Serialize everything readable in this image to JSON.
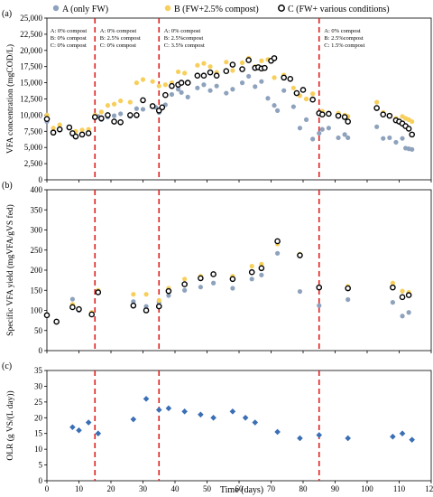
{
  "legend": [
    {
      "name": "A (only FW)",
      "marker": "filled",
      "color": "#8ea2bd"
    },
    {
      "name": "B (FW+2.5% compost)",
      "marker": "filled",
      "color": "#f7cf5a"
    },
    {
      "name": "C (FW+ various conditions)",
      "marker": "open",
      "color": "#000000"
    }
  ],
  "dividers_x": [
    15,
    35,
    85
  ],
  "xlim": [
    0,
    120
  ],
  "xticks": [
    0,
    10,
    20,
    30,
    40,
    50,
    60,
    70,
    80,
    90,
    100,
    110,
    120
  ],
  "xlabel": "Time (days)",
  "chart_data": [
    {
      "panel": "(a)",
      "type": "scatter",
      "ylabel": "VFA concentration (mgCOD/L)",
      "ylim": [
        0,
        25000
      ],
      "yticks": [
        "0",
        "2,500",
        "5,000",
        "7,500",
        "10,000",
        "12,500",
        "15,000",
        "17,500",
        "20,000",
        "22,500",
        "25,000"
      ],
      "annotations": [
        {
          "x": 0.5,
          "lines": [
            "A: 0% compost",
            "B: 0% compost",
            "C: 0% compost"
          ]
        },
        {
          "x": 16,
          "lines": [
            "A: 0% compost",
            "B: 2.5% compost",
            "C: 0% compost"
          ]
        },
        {
          "x": 36,
          "lines": [
            "A: 0% compost",
            "B: 2.5%compost",
            "C: 3.5% compost"
          ]
        },
        {
          "x": 86,
          "lines": [
            "A: 0% compost",
            "B: 2.5%compost",
            "C: 1.5% compost"
          ]
        }
      ],
      "series": [
        {
          "name": "A (only FW)",
          "points": [
            [
              0,
              9000
            ],
            [
              2,
              7500
            ],
            [
              4,
              7700
            ],
            [
              7,
              8000
            ],
            [
              8,
              7000
            ],
            [
              9,
              6800
            ],
            [
              11,
              7200
            ],
            [
              13,
              7300
            ],
            [
              16,
              9800
            ],
            [
              17,
              9300
            ],
            [
              19,
              9700
            ],
            [
              21,
              9900
            ],
            [
              23,
              10200
            ],
            [
              26,
              9800
            ],
            [
              28,
              11000
            ],
            [
              30,
              10900
            ],
            [
              34,
              11200
            ],
            [
              35,
              10400
            ],
            [
              37,
              11600
            ],
            [
              39,
              13200
            ],
            [
              41,
              14000
            ],
            [
              42,
              13500
            ],
            [
              44,
              12800
            ],
            [
              47,
              14200
            ],
            [
              49,
              14700
            ],
            [
              51,
              13800
            ],
            [
              53,
              14500
            ],
            [
              56,
              13400
            ],
            [
              58,
              14000
            ],
            [
              61,
              15000
            ],
            [
              63,
              16000
            ],
            [
              65,
              14400
            ],
            [
              67,
              15200
            ],
            [
              69,
              12600
            ],
            [
              71,
              11500
            ],
            [
              72,
              10700
            ],
            [
              74,
              13800
            ],
            [
              77,
              11300
            ],
            [
              79,
              8000
            ],
            [
              81,
              9300
            ],
            [
              83,
              6300
            ],
            [
              85,
              7200
            ],
            [
              86,
              7800
            ],
            [
              88,
              8000
            ],
            [
              91,
              6500
            ],
            [
              93,
              7000
            ],
            [
              94,
              6500
            ],
            [
              103,
              8200
            ],
            [
              105,
              6400
            ],
            [
              107,
              6500
            ],
            [
              109,
              5800
            ],
            [
              111,
              6400
            ],
            [
              112,
              4900
            ],
            [
              113,
              4800
            ],
            [
              114,
              4700
            ]
          ]
        },
        {
          "name": "B (FW+2.5% compost)",
          "points": [
            [
              0,
              10000
            ],
            [
              2,
              8000
            ],
            [
              4,
              8500
            ],
            [
              7,
              8200
            ],
            [
              9,
              7500
            ],
            [
              11,
              7700
            ],
            [
              13,
              7800
            ],
            [
              15,
              10000
            ],
            [
              17,
              10500
            ],
            [
              19,
              11500
            ],
            [
              21,
              11700
            ],
            [
              23,
              12200
            ],
            [
              26,
              12000
            ],
            [
              28,
              15000
            ],
            [
              30,
              15500
            ],
            [
              33,
              15200
            ],
            [
              35,
              14500
            ],
            [
              37,
              14700
            ],
            [
              39,
              15000
            ],
            [
              41,
              16700
            ],
            [
              43,
              16500
            ],
            [
              47,
              17700
            ],
            [
              49,
              18000
            ],
            [
              51,
              17500
            ],
            [
              53,
              16600
            ],
            [
              56,
              18200
            ],
            [
              58,
              16900
            ],
            [
              61,
              18100
            ],
            [
              63,
              18800
            ],
            [
              65,
              17500
            ],
            [
              67,
              18400
            ],
            [
              69,
              18600
            ],
            [
              71,
              15800
            ],
            [
              74,
              16200
            ],
            [
              77,
              14200
            ],
            [
              79,
              13000
            ],
            [
              81,
              12500
            ],
            [
              83,
              13300
            ],
            [
              86,
              10600
            ],
            [
              88,
              10300
            ],
            [
              91,
              10300
            ],
            [
              93,
              10000
            ],
            [
              94,
              9800
            ],
            [
              103,
              12000
            ],
            [
              105,
              10400
            ],
            [
              107,
              10000
            ],
            [
              109,
              9500
            ],
            [
              111,
              9800
            ],
            [
              112,
              9500
            ],
            [
              113,
              9300
            ],
            [
              114,
              9000
            ]
          ]
        },
        {
          "name": "C (FW+ various conditions)",
          "points": [
            [
              0,
              9400
            ],
            [
              2,
              7300
            ],
            [
              4,
              7800
            ],
            [
              7,
              8100
            ],
            [
              8,
              7200
            ],
            [
              9,
              6700
            ],
            [
              11,
              7000
            ],
            [
              13,
              7200
            ],
            [
              15,
              9700
            ],
            [
              17,
              9500
            ],
            [
              19,
              10000
            ],
            [
              21,
              9000
            ],
            [
              23,
              8900
            ],
            [
              26,
              10000
            ],
            [
              28,
              10000
            ],
            [
              30,
              12300
            ],
            [
              33,
              11400
            ],
            [
              35,
              10700
            ],
            [
              36,
              11200
            ],
            [
              37,
              13100
            ],
            [
              39,
              14500
            ],
            [
              41,
              14700
            ],
            [
              42,
              15000
            ],
            [
              44,
              15000
            ],
            [
              47,
              16100
            ],
            [
              49,
              16100
            ],
            [
              51,
              16600
            ],
            [
              53,
              16100
            ],
            [
              56,
              16800
            ],
            [
              58,
              17800
            ],
            [
              61,
              17100
            ],
            [
              63,
              18500
            ],
            [
              65,
              17300
            ],
            [
              66,
              17400
            ],
            [
              67,
              17200
            ],
            [
              68,
              17300
            ],
            [
              70,
              18400
            ],
            [
              71,
              18800
            ],
            [
              74,
              15800
            ],
            [
              76,
              15600
            ],
            [
              78,
              13400
            ],
            [
              80,
              13900
            ],
            [
              83,
              12400
            ],
            [
              85,
              10300
            ],
            [
              86,
              10100
            ],
            [
              88,
              10200
            ],
            [
              91,
              9900
            ],
            [
              93,
              9700
            ],
            [
              94,
              9000
            ],
            [
              103,
              11100
            ],
            [
              105,
              10100
            ],
            [
              107,
              9900
            ],
            [
              109,
              9200
            ],
            [
              110,
              9000
            ],
            [
              111,
              8700
            ],
            [
              112,
              8300
            ],
            [
              113,
              7900
            ],
            [
              114,
              7000
            ]
          ]
        }
      ]
    },
    {
      "panel": "(b)",
      "type": "scatter",
      "ylabel": "Specific VFA yield (mgVFA/gVS fed)",
      "ylim": [
        0,
        400
      ],
      "yticks": [
        "0",
        "50",
        "100",
        "150",
        "200",
        "250",
        "300",
        "350",
        "400"
      ],
      "series": [
        {
          "name": "A (only FW)",
          "points": [
            [
              0,
              90
            ],
            [
              3,
              70
            ],
            [
              8,
              128
            ],
            [
              10,
              100
            ],
            [
              14,
              92
            ],
            [
              16,
              148
            ],
            [
              27,
              122
            ],
            [
              31,
              110
            ],
            [
              35,
              120
            ],
            [
              38,
              137
            ],
            [
              43,
              150
            ],
            [
              48,
              158
            ],
            [
              52,
              168
            ],
            [
              58,
              155
            ],
            [
              64,
              178
            ],
            [
              67,
              188
            ],
            [
              72,
              242
            ],
            [
              79,
              147
            ],
            [
              85,
              112
            ],
            [
              94,
              127
            ],
            [
              108,
              120
            ],
            [
              111,
              86
            ],
            [
              113,
              95
            ]
          ]
        },
        {
          "name": "B (FW+2.5% compost)",
          "points": [
            [
              0,
              90
            ],
            [
              3,
              72
            ],
            [
              8,
              115
            ],
            [
              10,
              105
            ],
            [
              14,
              95
            ],
            [
              16,
              150
            ],
            [
              27,
              140
            ],
            [
              31,
              140
            ],
            [
              35,
              125
            ],
            [
              38,
              155
            ],
            [
              43,
              178
            ],
            [
              48,
              185
            ],
            [
              52,
              190
            ],
            [
              58,
              185
            ],
            [
              64,
              210
            ],
            [
              67,
              215
            ],
            [
              72,
              265
            ],
            [
              79,
              240
            ],
            [
              85,
              158
            ],
            [
              94,
              160
            ],
            [
              108,
              168
            ],
            [
              111,
              148
            ],
            [
              113,
              145
            ]
          ]
        },
        {
          "name": "C (FW+ various conditions)",
          "points": [
            [
              0,
              88
            ],
            [
              3,
              72
            ],
            [
              8,
              108
            ],
            [
              10,
              103
            ],
            [
              14,
              90
            ],
            [
              16,
              145
            ],
            [
              27,
              112
            ],
            [
              31,
              100
            ],
            [
              35,
              110
            ],
            [
              38,
              148
            ],
            [
              43,
              165
            ],
            [
              48,
              180
            ],
            [
              52,
              190
            ],
            [
              58,
              178
            ],
            [
              64,
              195
            ],
            [
              67,
              205
            ],
            [
              72,
              272
            ],
            [
              79,
              237
            ],
            [
              85,
              157
            ],
            [
              94,
              155
            ],
            [
              108,
              157
            ],
            [
              111,
              133
            ],
            [
              113,
              138
            ]
          ]
        }
      ]
    },
    {
      "panel": "(c)",
      "type": "scatter",
      "ylabel": "OLR (g VS/(L day))",
      "ylim": [
        0,
        35
      ],
      "yticks": [
        "0",
        "5",
        "10",
        "15",
        "20",
        "25",
        "30",
        "35"
      ],
      "series": [
        {
          "name": "OLR",
          "marker": "diamond",
          "color": "#3a6fb5",
          "points": [
            [
              8,
              17
            ],
            [
              10,
              16
            ],
            [
              13,
              18.5
            ],
            [
              16,
              15
            ],
            [
              27,
              19.5
            ],
            [
              31,
              26
            ],
            [
              35,
              22.5
            ],
            [
              38,
              23
            ],
            [
              43,
              22
            ],
            [
              48,
              21
            ],
            [
              52,
              20
            ],
            [
              58,
              22
            ],
            [
              62,
              20
            ],
            [
              65,
              18.5
            ],
            [
              72,
              15.5
            ],
            [
              79,
              13.5
            ],
            [
              85,
              14.5
            ],
            [
              94,
              13.5
            ],
            [
              108,
              14
            ],
            [
              111,
              15
            ],
            [
              114,
              13
            ]
          ]
        }
      ]
    }
  ]
}
